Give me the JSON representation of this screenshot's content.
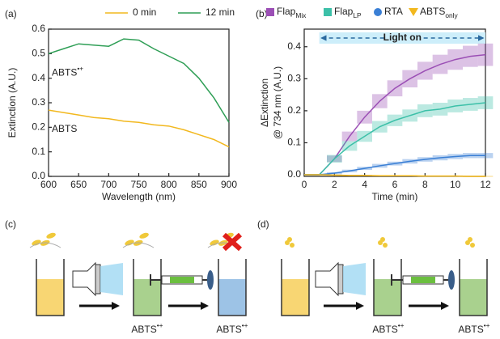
{
  "chart_data": [
    {
      "type": "line",
      "label": "(a)",
      "xlabel": "Wavelength (nm)",
      "ylabel": "Extinction (A.U.)",
      "x": [
        600,
        625,
        650,
        675,
        700,
        725,
        750,
        775,
        800,
        825,
        850,
        875,
        900
      ],
      "xlim": [
        600,
        900
      ],
      "xticks": [
        600,
        650,
        700,
        750,
        800,
        850,
        900
      ],
      "ylim": [
        0,
        0.6
      ],
      "yticks": [
        {
          "value": 0,
          "label": "0.0"
        },
        0.1,
        0.2,
        0.3,
        0.4,
        0.5,
        0.6
      ],
      "series": [
        {
          "name": "0 min",
          "color": "#f2b81e",
          "values": [
            0.27,
            0.26,
            0.25,
            0.24,
            0.235,
            0.225,
            0.22,
            0.21,
            0.205,
            0.19,
            0.17,
            0.15,
            0.12
          ],
          "curve_label": {
            "text": "ABTS"
          }
        },
        {
          "name": "12 min",
          "color": "#2e9e55",
          "values": [
            0.5,
            0.52,
            0.54,
            0.535,
            0.53,
            0.56,
            0.555,
            0.52,
            0.49,
            0.46,
            0.4,
            0.32,
            0.22
          ],
          "curve_label": {
            "text": "ABTS",
            "sup": "•+"
          }
        }
      ]
    },
    {
      "type": "line_band",
      "label": "(b)",
      "xlabel": "Time (min)",
      "ylabel": [
        "ΔExtinction",
        "@ 734 nm (A.U.)"
      ],
      "x": [
        0,
        1,
        2,
        3,
        4,
        5,
        6,
        7,
        8,
        9,
        10,
        11,
        12
      ],
      "xlim": [
        0,
        12
      ],
      "xticks": [
        0,
        2,
        4,
        6,
        8,
        10,
        12
      ],
      "ylim": [
        -0.005,
        0.455
      ],
      "yticks": [
        {
          "value": 0,
          "label": "0.0"
        },
        0.1,
        0.2,
        0.3,
        0.4
      ],
      "light_on": {
        "text": "Light on",
        "from": 1,
        "to": 12
      },
      "series": [
        {
          "name": "Flap",
          "subscript": "Mix",
          "marker": "square",
          "color": "#9b4fb5",
          "values": [
            0,
            0,
            0.05,
            0.12,
            0.18,
            0.23,
            0.27,
            0.3,
            0.325,
            0.345,
            0.36,
            0.37,
            0.375
          ],
          "errors": [
            0,
            0,
            0.01,
            0.015,
            0.02,
            0.022,
            0.025,
            0.027,
            0.028,
            0.03,
            0.032,
            0.033,
            0.035
          ]
        },
        {
          "name": "Flap",
          "subscript": "LP",
          "marker": "square",
          "color": "#3cc0a8",
          "values": [
            0,
            0,
            0.05,
            0.09,
            0.12,
            0.15,
            0.17,
            0.185,
            0.2,
            0.205,
            0.215,
            0.22,
            0.225
          ],
          "errors": [
            0,
            0,
            0.012,
            0.015,
            0.017,
            0.018,
            0.018,
            0.019,
            0.02,
            0.02,
            0.02,
            0.02,
            0.02
          ]
        },
        {
          "name": "RTA",
          "marker": "circle",
          "color": "#3a7fd5",
          "values": [
            0,
            0,
            0.005,
            0.012,
            0.02,
            0.028,
            0.035,
            0.042,
            0.048,
            0.053,
            0.057,
            0.06,
            0.06
          ],
          "errors": [
            0,
            0,
            0.003,
            0.004,
            0.005,
            0.006,
            0.006,
            0.007,
            0.007,
            0.008,
            0.008,
            0.008,
            0.008
          ]
        },
        {
          "name": "ABTS",
          "subscript": "only",
          "marker": "triangle",
          "color": "#f2b81e",
          "values": [
            0,
            0,
            -0.001,
            -0.002,
            -0.002,
            -0.003,
            -0.003,
            -0.003,
            -0.004,
            -0.004,
            -0.004,
            -0.005,
            -0.005
          ],
          "errors": [
            0,
            0,
            0.002,
            0.002,
            0.002,
            0.002,
            0.002,
            0.002,
            0.002,
            0.002,
            0.002,
            0.002,
            0.002
          ]
        }
      ]
    }
  ],
  "diagrams": [
    {
      "label": "(c)",
      "captions": [
        {
          "text": "ABTS",
          "sup": "•+"
        },
        {
          "text": "ABTS",
          "sup": "•+"
        }
      ]
    },
    {
      "label": "(d)",
      "captions": [
        {
          "text": "ABTS",
          "sup": "•+"
        },
        {
          "text": "ABTS",
          "sup": "•+"
        }
      ]
    }
  ]
}
